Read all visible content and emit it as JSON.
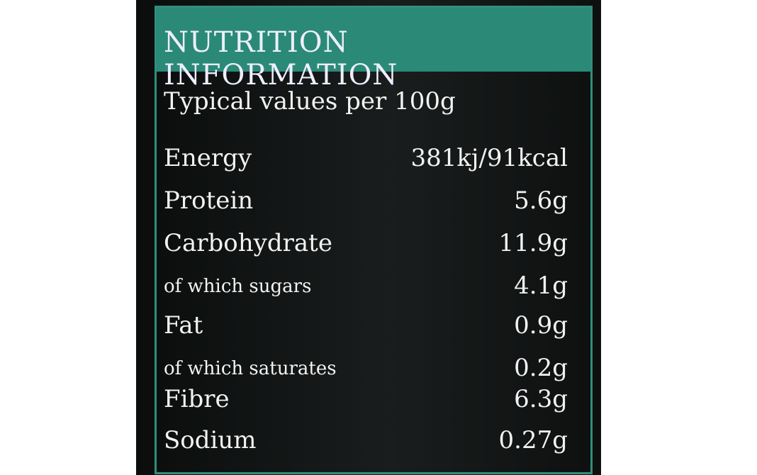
{
  "title": "NUTRITION INFORMATION",
  "subtitle": "Typical values per 100g",
  "rows": [
    [
      "Energy",
      "381kj/91kcal"
    ],
    [
      "Protein",
      "5.6g"
    ],
    [
      "Carbohydrate",
      "11.9g"
    ],
    [
      "of which sugars",
      "4.1g"
    ],
    [
      "Fat",
      "0.9g"
    ],
    [
      "of which saturates",
      "0.2g"
    ],
    [
      "Fibre",
      "6.3g"
    ],
    [
      "Sodium",
      "0.27g"
    ]
  ]
}
